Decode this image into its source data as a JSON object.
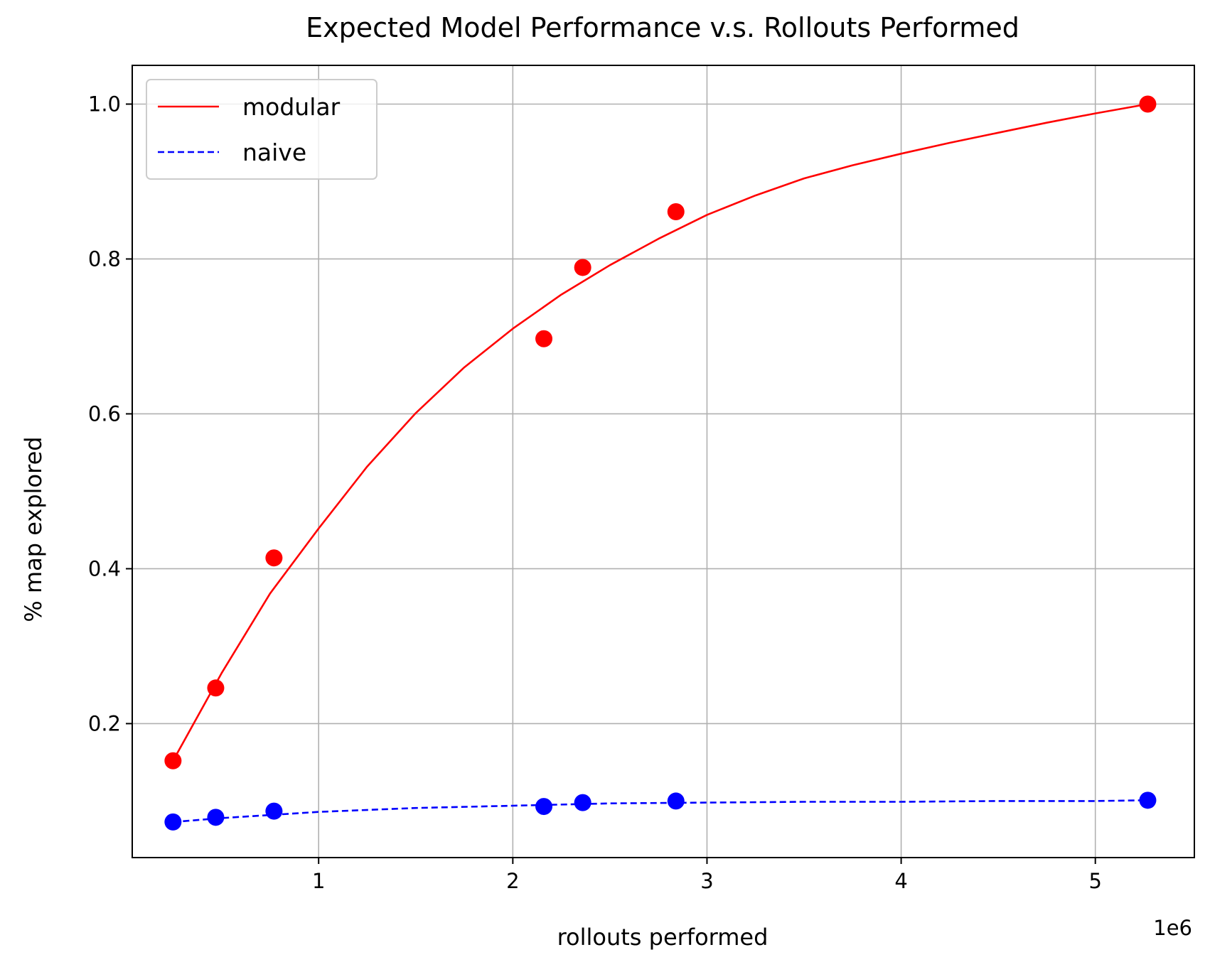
{
  "chart_data": {
    "type": "line",
    "title": "Expected Model Performance v.s. Rollouts Performed",
    "xlabel": "rollouts performed",
    "ylabel": "% map explored",
    "x_offset_label": "1e6",
    "xlim": [
      0.04,
      5.51
    ],
    "ylim": [
      0.027,
      1.05
    ],
    "xticks": [
      1,
      2,
      3,
      4,
      5
    ],
    "xtick_labels": [
      "1",
      "2",
      "3",
      "4",
      "5"
    ],
    "yticks": [
      0.2,
      0.4,
      0.6,
      0.8,
      1.0
    ],
    "ytick_labels": [
      "0.2",
      "0.4",
      "0.6",
      "0.8",
      "1.0"
    ],
    "grid": true,
    "legend_position": "top-left",
    "series": [
      {
        "name": "modular",
        "color": "#ff0000",
        "line_style": "solid",
        "points": {
          "x": [
            0.25,
            0.47,
            0.77,
            2.16,
            2.36,
            2.84,
            5.27
          ],
          "y": [
            0.152,
            0.246,
            0.414,
            0.697,
            0.789,
            0.861,
            1.0
          ]
        },
        "fit_curve": {
          "x": [
            0.25,
            0.5,
            0.75,
            1.0,
            1.25,
            1.5,
            1.75,
            2.0,
            2.25,
            2.5,
            2.75,
            3.0,
            3.25,
            3.5,
            3.75,
            4.0,
            4.25,
            4.5,
            4.75,
            5.0,
            5.27
          ],
          "y": [
            0.152,
            0.265,
            0.368,
            0.452,
            0.532,
            0.601,
            0.66,
            0.71,
            0.754,
            0.792,
            0.826,
            0.857,
            0.882,
            0.904,
            0.921,
            0.936,
            0.95,
            0.963,
            0.976,
            0.988,
            1.0
          ]
        }
      },
      {
        "name": "naive",
        "color": "#0000ff",
        "line_style": "dashed",
        "points": {
          "x": [
            0.25,
            0.47,
            0.77,
            2.16,
            2.36,
            2.84,
            5.27
          ],
          "y": [
            0.073,
            0.079,
            0.087,
            0.093,
            0.098,
            0.1,
            0.101
          ]
        },
        "fit_curve": {
          "x": [
            0.25,
            0.5,
            0.75,
            1.0,
            1.5,
            2.0,
            2.5,
            3.0,
            3.5,
            4.0,
            4.5,
            5.0,
            5.27
          ],
          "y": [
            0.073,
            0.078,
            0.082,
            0.086,
            0.091,
            0.094,
            0.097,
            0.098,
            0.099,
            0.099,
            0.1,
            0.1,
            0.101
          ]
        }
      }
    ]
  }
}
